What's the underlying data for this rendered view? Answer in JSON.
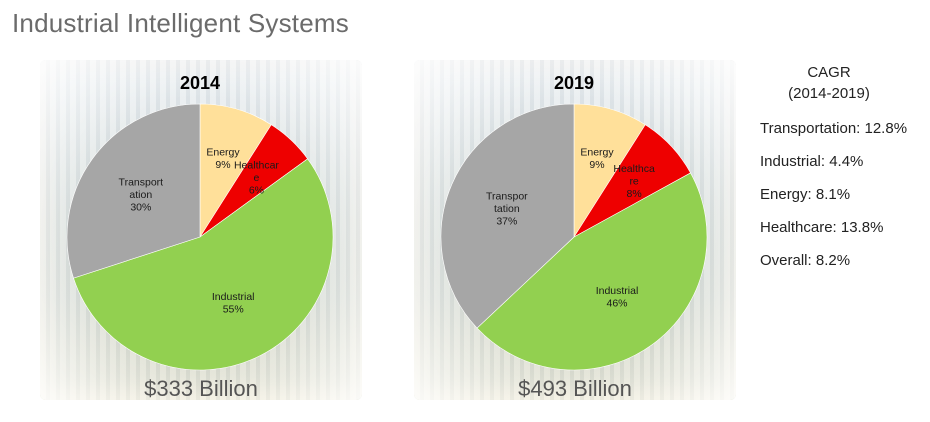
{
  "title": "Industrial Intelligent Systems",
  "colors": {
    "Energy": "#ffe09a",
    "Healthcare": "#ee0000",
    "Industrial": "#92d050",
    "Transportation": "#a6a6a6"
  },
  "chart_data": [
    {
      "type": "pie",
      "title": "2014",
      "total_label": "$333 Billion",
      "slices": [
        {
          "name": "Energy",
          "label": [
            "Energy",
            "9%"
          ],
          "value": 9
        },
        {
          "name": "Healthcare",
          "label": [
            "Healthcar",
            "e",
            "6%"
          ],
          "value": 6
        },
        {
          "name": "Industrial",
          "label": [
            "Industrial",
            "55%"
          ],
          "value": 55
        },
        {
          "name": "Transportation",
          "label": [
            "Transport",
            "ation",
            "30%"
          ],
          "value": 30
        }
      ]
    },
    {
      "type": "pie",
      "title": "2019",
      "total_label": "$493 Billion",
      "slices": [
        {
          "name": "Energy",
          "label": [
            "Energy",
            "9%"
          ],
          "value": 9
        },
        {
          "name": "Healthcare",
          "label": [
            "Healthca",
            "re",
            "8%"
          ],
          "value": 8
        },
        {
          "name": "Industrial",
          "label": [
            "Industrial",
            "46%"
          ],
          "value": 46
        },
        {
          "name": "Transportation",
          "label": [
            "Transpor",
            "tation",
            "37%"
          ],
          "value": 37
        }
      ]
    }
  ],
  "cagr": {
    "title_line1": "CAGR",
    "title_line2": "(2014-2019)",
    "items": [
      "Transportation: 12.8%",
      "Industrial: 4.4%",
      "Energy: 8.1%",
      "Healthcare: 13.8%",
      "Overall: 8.2%"
    ]
  }
}
